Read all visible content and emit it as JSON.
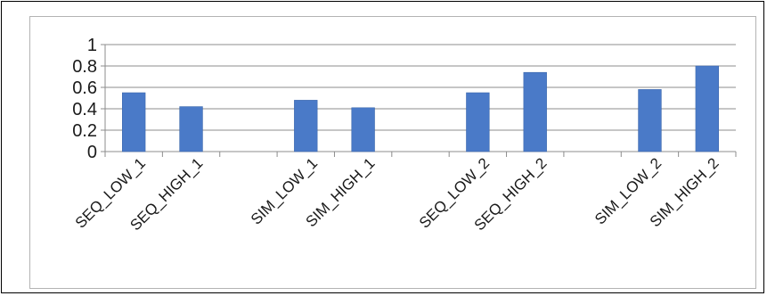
{
  "chart_data": {
    "type": "bar",
    "title": "",
    "xlabel": "",
    "ylabel": "",
    "ylim": [
      0,
      1
    ],
    "yticks": [
      "0",
      "0.2",
      "0.4",
      "0.6",
      "0.8",
      "1"
    ],
    "grid": true,
    "legend": "none",
    "bar_color": "#4a7ac8",
    "categories": [
      "SEQ_LOW_1",
      "SEQ_HIGH_1",
      "",
      "SIM_LOW_1",
      "SIM_HIGH_1",
      "",
      "SEQ_LOW_2",
      "SEQ_HIGH_2",
      "",
      "SIM_LOW_2",
      "SIM_HIGH_2"
    ],
    "values": [
      0.55,
      0.42,
      null,
      0.48,
      0.41,
      null,
      0.55,
      0.74,
      null,
      0.58,
      0.8
    ]
  }
}
